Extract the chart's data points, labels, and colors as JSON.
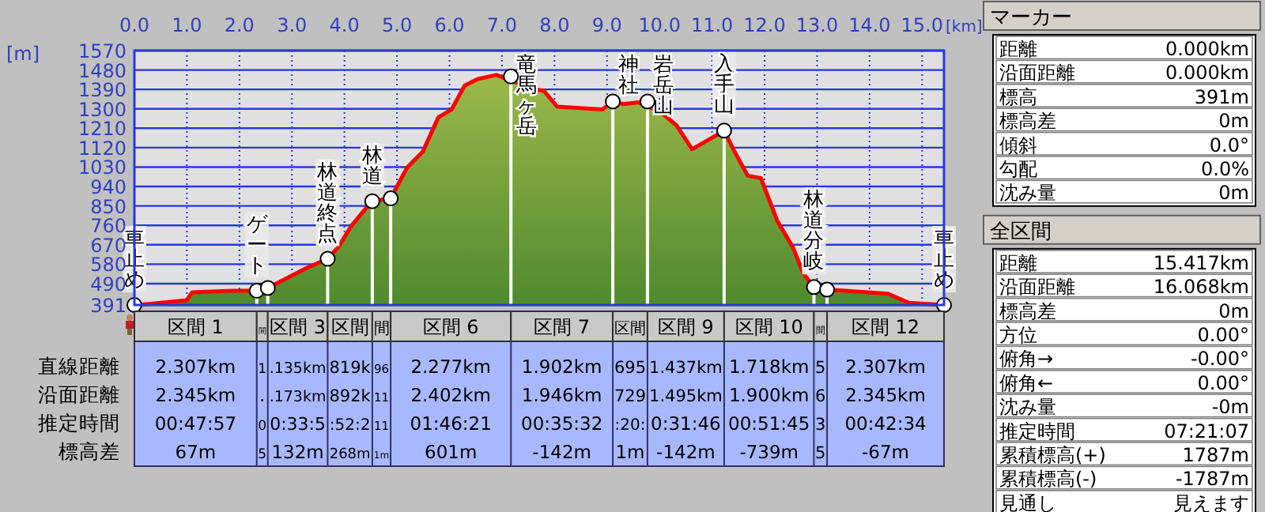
{
  "chart_data": [
    {
      "type": "area",
      "ylabel": "[m]",
      "xlabel": "[km]",
      "grid": true,
      "xlim": [
        0,
        15.417
      ],
      "ylim": [
        391,
        1570
      ],
      "xticks": [
        {
          "value": 0,
          "label": "0.0"
        },
        {
          "value": 1,
          "label": "1.0"
        },
        {
          "value": 2,
          "label": "2.0"
        },
        {
          "value": 3,
          "label": "3.0"
        },
        {
          "value": 4,
          "label": "4.0"
        },
        {
          "value": 5,
          "label": "5.0"
        },
        {
          "value": 6,
          "label": "6.0"
        },
        {
          "value": 7,
          "label": "7.0"
        },
        {
          "value": 8,
          "label": "8.0"
        },
        {
          "value": 9,
          "label": "9.0"
        },
        {
          "value": 10,
          "label": "10.0"
        },
        {
          "value": 11,
          "label": "11.0"
        },
        {
          "value": 12,
          "label": "12.0"
        },
        {
          "value": 13,
          "label": "13.0"
        },
        {
          "value": 14,
          "label": "14.0"
        },
        {
          "value": 15,
          "label": "15.0"
        }
      ],
      "yticks": [
        391,
        490,
        580,
        670,
        760,
        850,
        940,
        1030,
        1120,
        1210,
        1300,
        1390,
        1480,
        1570
      ],
      "series": [
        {
          "type": "area",
          "color": "#ff0000",
          "x": [
            0,
            0.15,
            1.0,
            1.1,
            1.86,
            2.2,
            2.33,
            2.54,
            2.97,
            3.27,
            3.68,
            3.88,
            4.13,
            4.38,
            4.53,
            4.88,
            5.19,
            5.49,
            5.79,
            6.04,
            6.29,
            6.54,
            6.89,
            7.3,
            7.5,
            7.8,
            8.05,
            8.91,
            9.11,
            9.31,
            9.6,
            10.02,
            10.32,
            10.62,
            10.92,
            11.23,
            11.43,
            11.68,
            11.93,
            12.24,
            12.54,
            12.74,
            12.94,
            13.19,
            13.54,
            14.35,
            14.75,
            15.417
          ],
          "values": [
            391,
            393,
            413,
            450,
            457,
            457,
            457,
            470,
            524,
            561,
            605,
            658,
            757,
            831,
            872,
            885,
            1027,
            1101,
            1261,
            1297,
            1408,
            1438,
            1457,
            1420,
            1395,
            1383,
            1310,
            1297,
            1334,
            1322,
            1330,
            1285,
            1224,
            1113,
            1155,
            1199,
            1101,
            990,
            979,
            782,
            658,
            536,
            474,
            462,
            457,
            443,
            401,
            391
          ]
        },
        {
          "type": "lollipop",
          "color": "#ffffff",
          "marker": "circle",
          "x": [
            0,
            2.33,
            2.54,
            3.68,
            4.53,
            4.88,
            7.17,
            9.11,
            9.77,
            11.23,
            12.94,
            13.19,
            15.417
          ],
          "values": [
            391,
            457,
            470,
            605,
            872,
            885,
            1450,
            1334,
            1334,
            1199,
            474,
            462,
            391
          ]
        }
      ],
      "annotations": [
        {
          "text": "車止め",
          "x": 0,
          "y": 391
        },
        {
          "text": "ゲート",
          "x": 2.33,
          "y": 457
        },
        {
          "text": "林道終点",
          "x": 3.68,
          "y": 605
        },
        {
          "text": "林道",
          "x": 4.53,
          "y": 872
        },
        {
          "text": "竜馬ヶ岳",
          "x": 7.17,
          "y": 1450
        },
        {
          "text": "神社",
          "x": 9.11,
          "y": 1334
        },
        {
          "text": "岩岳山",
          "x": 9.77,
          "y": 1334
        },
        {
          "text": "入手山",
          "x": 11.23,
          "y": 1199
        },
        {
          "text": "林道分岐",
          "x": 12.94,
          "y": 474
        },
        {
          "text": "車止め",
          "x": 15.417,
          "y": 391
        }
      ]
    },
    {
      "type": "other",
      "categories": [
        "区間 1",
        "間",
        "区間 3",
        "区間",
        "間",
        "区間 6",
        "区間 7",
        "区間",
        "区間 9",
        "区間 10",
        "間",
        "区間 12"
      ],
      "y_categories": [
        "直線距離",
        "沿面距離",
        "推定時間",
        "標高差"
      ],
      "cell_labels": [
        [
          "2.307km",
          "1",
          ".135km",
          "819k",
          "96",
          "2.277km",
          "1.902km",
          "695",
          "1.437km",
          "1.718km",
          "5",
          "2.307km"
        ],
        [
          "2.345km",
          ".",
          ".173km",
          "892k",
          "11",
          "2.402km",
          "1.946km",
          "729",
          "1.495km",
          "1.900km",
          "6",
          "2.345km"
        ],
        [
          "00:47:57",
          "0",
          "0:33:5",
          ":52:2",
          "11",
          "01:46:21",
          "00:35:32",
          ":20:",
          "0:31:46",
          "00:51:45",
          "3",
          "00:42:34"
        ],
        [
          "67m",
          "5",
          "132m",
          "268m",
          "1m",
          "601m",
          "-142m",
          "1m",
          "-142m",
          "-739m",
          "5",
          "-67m"
        ]
      ]
    },
    {
      "type": "other",
      "title": "マーカー",
      "y_categories": [
        "距離",
        "沿面距離",
        "標高",
        "標高差",
        "傾斜",
        "勾配",
        "沈み量"
      ],
      "cell_labels": [
        [
          "0.000km"
        ],
        [
          "0.000km"
        ],
        [
          "391m"
        ],
        [
          "0m"
        ],
        [
          "0.0°"
        ],
        [
          "0.0%"
        ],
        [
          "0m"
        ]
      ]
    },
    {
      "type": "other",
      "title": "全区間",
      "y_categories": [
        "距離",
        "沿面距離",
        "標高差",
        "方位",
        "俯角→",
        "俯角←",
        "沈み量",
        "推定時間",
        "累積標高(+)",
        "累積標高(-)",
        "見通し"
      ],
      "cell_labels": [
        [
          "15.417km"
        ],
        [
          "16.068km"
        ],
        [
          "0m"
        ],
        [
          "0.00°"
        ],
        [
          "-0.00°"
        ],
        [
          "0.00°"
        ],
        [
          "-0m"
        ],
        [
          "07:21:07"
        ],
        [
          "1787m"
        ],
        [
          "-1787m"
        ],
        [
          "見えます"
        ]
      ]
    }
  ]
}
